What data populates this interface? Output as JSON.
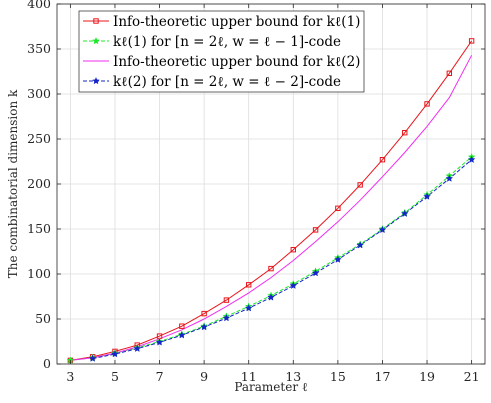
{
  "chart_data": {
    "type": "line",
    "xlabel": "Parameter ℓ",
    "ylabel": "The combinatorial dimension k",
    "xlim": [
      2.4,
      21.6
    ],
    "ylim": [
      0,
      400
    ],
    "xticks": [
      3,
      5,
      7,
      9,
      11,
      13,
      15,
      17,
      19,
      21
    ],
    "yticks": [
      0,
      50,
      100,
      150,
      200,
      250,
      300,
      350,
      400
    ],
    "grid": true,
    "legend_position": "top-left",
    "series": [
      {
        "name": "Info-theoretic upper bound for kℓ(1)",
        "color": "#e8141b",
        "marker": "square",
        "line_style": "solid",
        "x": [
          3,
          4,
          5,
          6,
          7,
          8,
          9,
          10,
          11,
          12,
          13,
          14,
          15,
          16,
          17,
          18,
          19,
          20,
          21
        ],
        "y": [
          4,
          8,
          14,
          21,
          31,
          42,
          56,
          71,
          88,
          106,
          127,
          149,
          173,
          199,
          227,
          257,
          289,
          323,
          359
        ]
      },
      {
        "name": "kℓ(1) for [n = 2ℓ, w = ℓ − 1]-code",
        "color": "#1ee82a",
        "marker": "star",
        "line_style": "dashed",
        "x": [
          3,
          4,
          5,
          6,
          7,
          8,
          9,
          10,
          11,
          12,
          13,
          14,
          15,
          16,
          17,
          18,
          19,
          20,
          21
        ],
        "y": [
          4,
          7,
          12,
          18,
          25,
          33,
          42,
          53,
          64,
          76,
          89,
          103,
          118,
          133,
          150,
          168,
          188,
          209,
          230
        ]
      },
      {
        "name": "Info-theoretic upper bound for kℓ(2)",
        "color": "#f02ef0",
        "marker": "none",
        "line_style": "solid",
        "x": [
          3,
          4,
          5,
          6,
          7,
          8,
          9,
          10,
          11,
          12,
          13,
          14,
          15,
          16,
          17,
          18,
          19,
          20,
          21
        ],
        "y": [
          4,
          7,
          12,
          19,
          28,
          38,
          50,
          64,
          79,
          96,
          115,
          136,
          158,
          182,
          208,
          235,
          264,
          296,
          343
        ]
      },
      {
        "name": "kℓ(2) for [n = 2ℓ, w = ℓ − 2]-code",
        "color": "#1525c8",
        "marker": "star",
        "line_style": "dashed",
        "x": [
          4,
          5,
          6,
          7,
          8,
          9,
          10,
          11,
          12,
          13,
          14,
          15,
          16,
          17,
          18,
          19,
          20,
          21
        ],
        "y": [
          6,
          11,
          17,
          24,
          32,
          41,
          51,
          62,
          74,
          87,
          101,
          116,
          132,
          149,
          167,
          186,
          206,
          227
        ]
      }
    ]
  }
}
